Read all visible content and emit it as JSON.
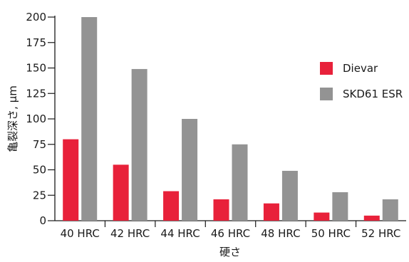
{
  "chart_data": {
    "type": "bar",
    "categories": [
      "40 HRC",
      "42 HRC",
      "44 HRC",
      "46 HRC",
      "48 HRC",
      "50 HRC",
      "52 HRC"
    ],
    "series": [
      {
        "name": "Dievar",
        "color": "#e8213a",
        "values": [
          80,
          55,
          29,
          21,
          17,
          8,
          5
        ]
      },
      {
        "name": "SKD61 ESR",
        "color": "#939393",
        "values": [
          200,
          149,
          100,
          75,
          49,
          28,
          21
        ]
      }
    ],
    "xlabel": "硬さ",
    "ylabel": "亀裂深さ, µm",
    "ylim": [
      0,
      200
    ],
    "yticks": [
      0,
      25,
      50,
      75,
      100,
      125,
      150,
      175,
      200
    ],
    "grid": false,
    "legend_position": "right"
  }
}
